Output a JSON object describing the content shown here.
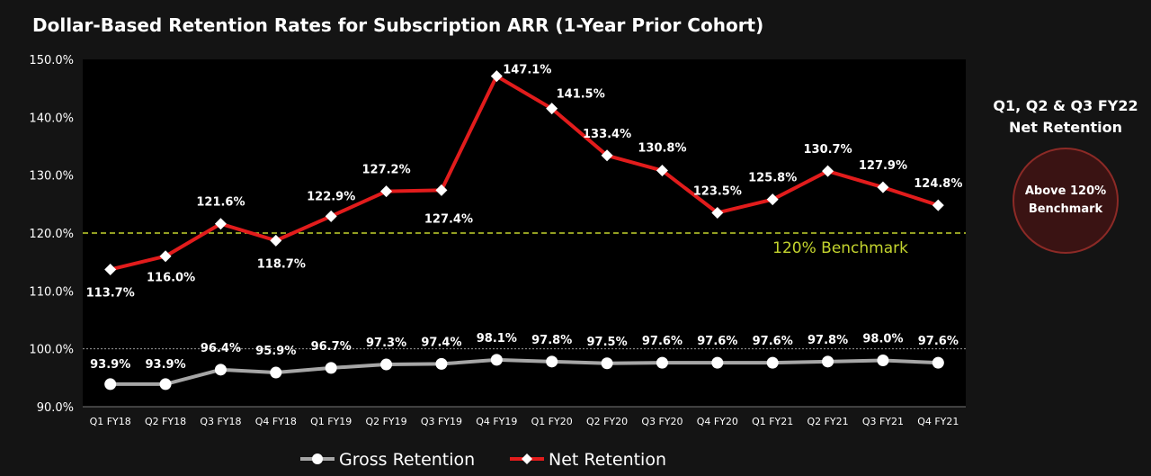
{
  "chart_data": {
    "type": "line",
    "title": "Dollar-Based Retention Rates for Subscription ARR (1-Year Prior Cohort)",
    "categories": [
      "Q1 FY18",
      "Q2 FY18",
      "Q3 FY18",
      "Q4 FY18",
      "Q1 FY19",
      "Q2 FY19",
      "Q3 FY19",
      "Q4 FY19",
      "Q1 FY20",
      "Q2 FY20",
      "Q3 FY20",
      "Q4 FY20",
      "Q1 FY21",
      "Q2 FY21",
      "Q3 FY21",
      "Q4 FY21"
    ],
    "y_ticks": [
      "150.0%",
      "140.0%",
      "130.0%",
      "120.0%",
      "110.0%",
      "100.0%",
      "90.0%"
    ],
    "ylim": [
      90,
      150
    ],
    "series": [
      {
        "name": "Gross Retention",
        "color": "#a6a6a6",
        "values": [
          93.9,
          93.9,
          96.4,
          95.9,
          96.7,
          97.3,
          97.4,
          98.1,
          97.8,
          97.5,
          97.6,
          97.6,
          97.6,
          97.8,
          98.0,
          97.6
        ],
        "labels": [
          "93.9%",
          "93.9%",
          "96.4%",
          "95.9%",
          "96.7%",
          "97.3%",
          "97.4%",
          "98.1%",
          "97.8%",
          "97.5%",
          "97.6%",
          "97.6%",
          "97.6%",
          "97.8%",
          "98.0%",
          "97.6%"
        ]
      },
      {
        "name": "Net Retention",
        "color": "#e21c1c",
        "values": [
          113.7,
          116.0,
          121.6,
          118.7,
          122.9,
          127.2,
          127.4,
          147.1,
          141.5,
          133.4,
          130.8,
          123.5,
          125.8,
          130.7,
          127.9,
          124.8
        ],
        "labels": [
          "113.7%",
          "116.0%",
          "121.6%",
          "118.7%",
          "122.9%",
          "127.2%",
          "127.4%",
          "147.1%",
          "141.5%",
          "133.4%",
          "130.8%",
          "123.5%",
          "125.8%",
          "130.7%",
          "127.9%",
          "124.8%"
        ]
      }
    ],
    "reference_lines": [
      {
        "value": 120,
        "label": "120% Benchmark",
        "color": "#c4d42e",
        "style": "dashed"
      },
      {
        "value": 100,
        "label": "",
        "color": "#9a9a9a",
        "style": "dotted"
      }
    ],
    "legend": [
      "Gross Retention",
      "Net Retention"
    ],
    "legend_position": "bottom"
  },
  "side_panel": {
    "title_line1": "Q1, Q2 & Q3 FY22",
    "title_line2": "Net Retention",
    "badge_line1": "Above 120%",
    "badge_line2": "Benchmark"
  }
}
